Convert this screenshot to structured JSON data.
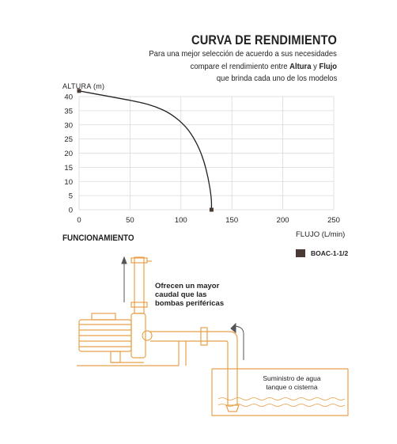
{
  "header": {
    "title": "CURVA DE RENDIMIENTO",
    "line1": "Para una mejor selección de acuerdo a sus necesidades",
    "line2_pre": "compare el rendimiento entre ",
    "line2_bold1": "Altura",
    "line2_mid": " y ",
    "line2_bold2": "Flujo",
    "line3": "que brinda cada uno de los modelos"
  },
  "chart_data": {
    "type": "line",
    "title": "CURVA DE RENDIMIENTO",
    "xlabel": "FLUJO (L/min)",
    "ylabel": "ALTURA  (m)",
    "xlim": [
      0,
      250
    ],
    "ylim": [
      0,
      40
    ],
    "xticks": [
      0,
      50,
      100,
      150,
      200,
      250
    ],
    "yticks": [
      0,
      5,
      10,
      15,
      20,
      25,
      30,
      35,
      40
    ],
    "grid": true,
    "legend_position": "right",
    "series": [
      {
        "name": "BOAC-1-1/2",
        "color": "#4a3a33",
        "x": [
          0,
          30,
          60,
          75,
          90,
          105,
          115,
          122,
          127,
          130,
          130
        ],
        "y": [
          42,
          40,
          38,
          36.5,
          34,
          29.5,
          24,
          18,
          11,
          4,
          0
        ]
      }
    ]
  },
  "diagram": {
    "section_title": "FUNCIONAMIENTO",
    "note": "Ofrecen un mayor caudal que las bombas periféricas",
    "caption_line1": "Suministro de agua",
    "caption_line2": "tanque o cisterna",
    "accent_color": "#e8a04a"
  }
}
